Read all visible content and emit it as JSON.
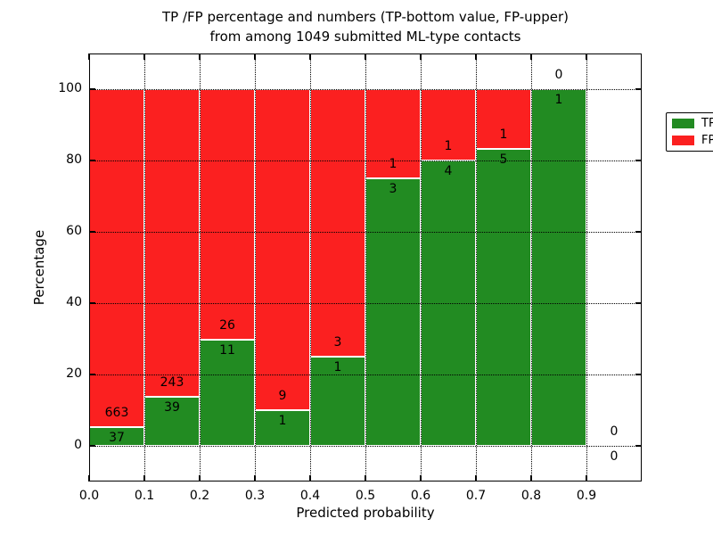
{
  "title": {
    "line1": "TP /FP percentage and numbers (TP-bottom value, FP-upper)",
    "line2": "from among 1049 submitted ML-type contacts"
  },
  "legend": [
    {
      "label": "TP",
      "color": "#228b22"
    },
    {
      "label": "FP",
      "color": "#fb2020"
    }
  ],
  "colors": {
    "tp": "#228b22",
    "fp": "#fb2020",
    "grid": "#000000",
    "spine": "#000000"
  },
  "chart_data": {
    "type": "bar",
    "stacked": true,
    "orientation": "vertical",
    "title": "TP /FP percentage and numbers (TP-bottom value, FP-upper)\nfrom among 1049 submitted ML-type contacts",
    "xlabel": "Predicted probability",
    "ylabel": "Percentage",
    "xlim": [
      0.0,
      1.0
    ],
    "ylim": [
      -10,
      110
    ],
    "x_tick_values": [
      0.0,
      0.1,
      0.2,
      0.3,
      0.4,
      0.5,
      0.6,
      0.7,
      0.8,
      0.9
    ],
    "x_tick_labels": [
      "0.0",
      "0.1",
      "0.2",
      "0.3",
      "0.4",
      "0.5",
      "0.6",
      "0.7",
      "0.8",
      "0.9"
    ],
    "y_tick_values": [
      0,
      20,
      40,
      60,
      80,
      100
    ],
    "y_tick_labels": [
      "0",
      "20",
      "40",
      "60",
      "80",
      "100"
    ],
    "grid": "dotted",
    "legend_position": "upper right",
    "total_contacts": 1049,
    "bins": [
      {
        "range": [
          0.0,
          0.1
        ],
        "tp": 37,
        "fp": 663,
        "tp_pct": 5.29,
        "fp_pct": 94.71
      },
      {
        "range": [
          0.1,
          0.2
        ],
        "tp": 39,
        "fp": 243,
        "tp_pct": 13.83,
        "fp_pct": 86.17
      },
      {
        "range": [
          0.2,
          0.3
        ],
        "tp": 11,
        "fp": 26,
        "tp_pct": 29.73,
        "fp_pct": 70.27
      },
      {
        "range": [
          0.3,
          0.4
        ],
        "tp": 1,
        "fp": 9,
        "tp_pct": 10.0,
        "fp_pct": 90.0
      },
      {
        "range": [
          0.4,
          0.5
        ],
        "tp": 1,
        "fp": 3,
        "tp_pct": 25.0,
        "fp_pct": 75.0
      },
      {
        "range": [
          0.5,
          0.6
        ],
        "tp": 3,
        "fp": 1,
        "tp_pct": 75.0,
        "fp_pct": 25.0
      },
      {
        "range": [
          0.6,
          0.7
        ],
        "tp": 4,
        "fp": 1,
        "tp_pct": 80.0,
        "fp_pct": 20.0
      },
      {
        "range": [
          0.7,
          0.8
        ],
        "tp": 5,
        "fp": 1,
        "tp_pct": 83.33,
        "fp_pct": 16.67
      },
      {
        "range": [
          0.8,
          0.9
        ],
        "tp": 1,
        "fp": 0,
        "tp_pct": 100.0,
        "fp_pct": 0.0
      },
      {
        "range": [
          0.9,
          1.0
        ],
        "tp": 0,
        "fp": 0,
        "tp_pct": 0.0,
        "fp_pct": 0.0
      }
    ],
    "series": [
      {
        "name": "TP",
        "color": "#228b22",
        "counts": [
          37,
          39,
          11,
          1,
          1,
          3,
          4,
          5,
          1,
          0
        ]
      },
      {
        "name": "FP",
        "color": "#fb2020",
        "counts": [
          663,
          243,
          26,
          9,
          3,
          1,
          1,
          1,
          0,
          0
        ]
      }
    ]
  }
}
